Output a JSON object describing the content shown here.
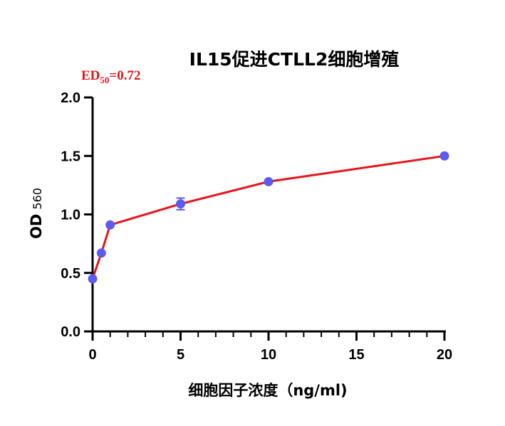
{
  "chart_data": {
    "type": "line",
    "title": "IL15促进CTLL2细胞增殖",
    "annotation": {
      "prefix": "ED",
      "subscript": "50",
      "suffix": "=0.72"
    },
    "xlabel": "细胞因子浓度（ng/ml)",
    "ylabel": {
      "main": "OD",
      "subscript": "560"
    },
    "xlim": [
      0,
      20
    ],
    "ylim": [
      0,
      2.0
    ],
    "x_ticks": [
      0,
      5,
      10,
      15,
      20
    ],
    "x_tick_labels": [
      "0",
      "5",
      "10",
      "15",
      "20"
    ],
    "y_ticks": [
      0,
      0.5,
      1.0,
      1.5,
      2.0
    ],
    "y_tick_labels": [
      "0.0",
      "0.5",
      "1.0",
      "1.5",
      "2.0"
    ],
    "x_minor_step": 1,
    "grid": false,
    "series": [
      {
        "x": [
          0,
          0.5,
          1,
          5,
          10,
          20
        ],
        "y": [
          0.45,
          0.67,
          0.91,
          1.09,
          1.28,
          1.5
        ],
        "error": [
          0,
          0,
          0,
          0.05,
          0,
          0
        ]
      }
    ],
    "colors": {
      "line": "#e8141b",
      "marker": "#5b5bf0",
      "error_bar": "#5b5bf0",
      "axis": "#000000",
      "annotation": "#e8141b"
    }
  }
}
